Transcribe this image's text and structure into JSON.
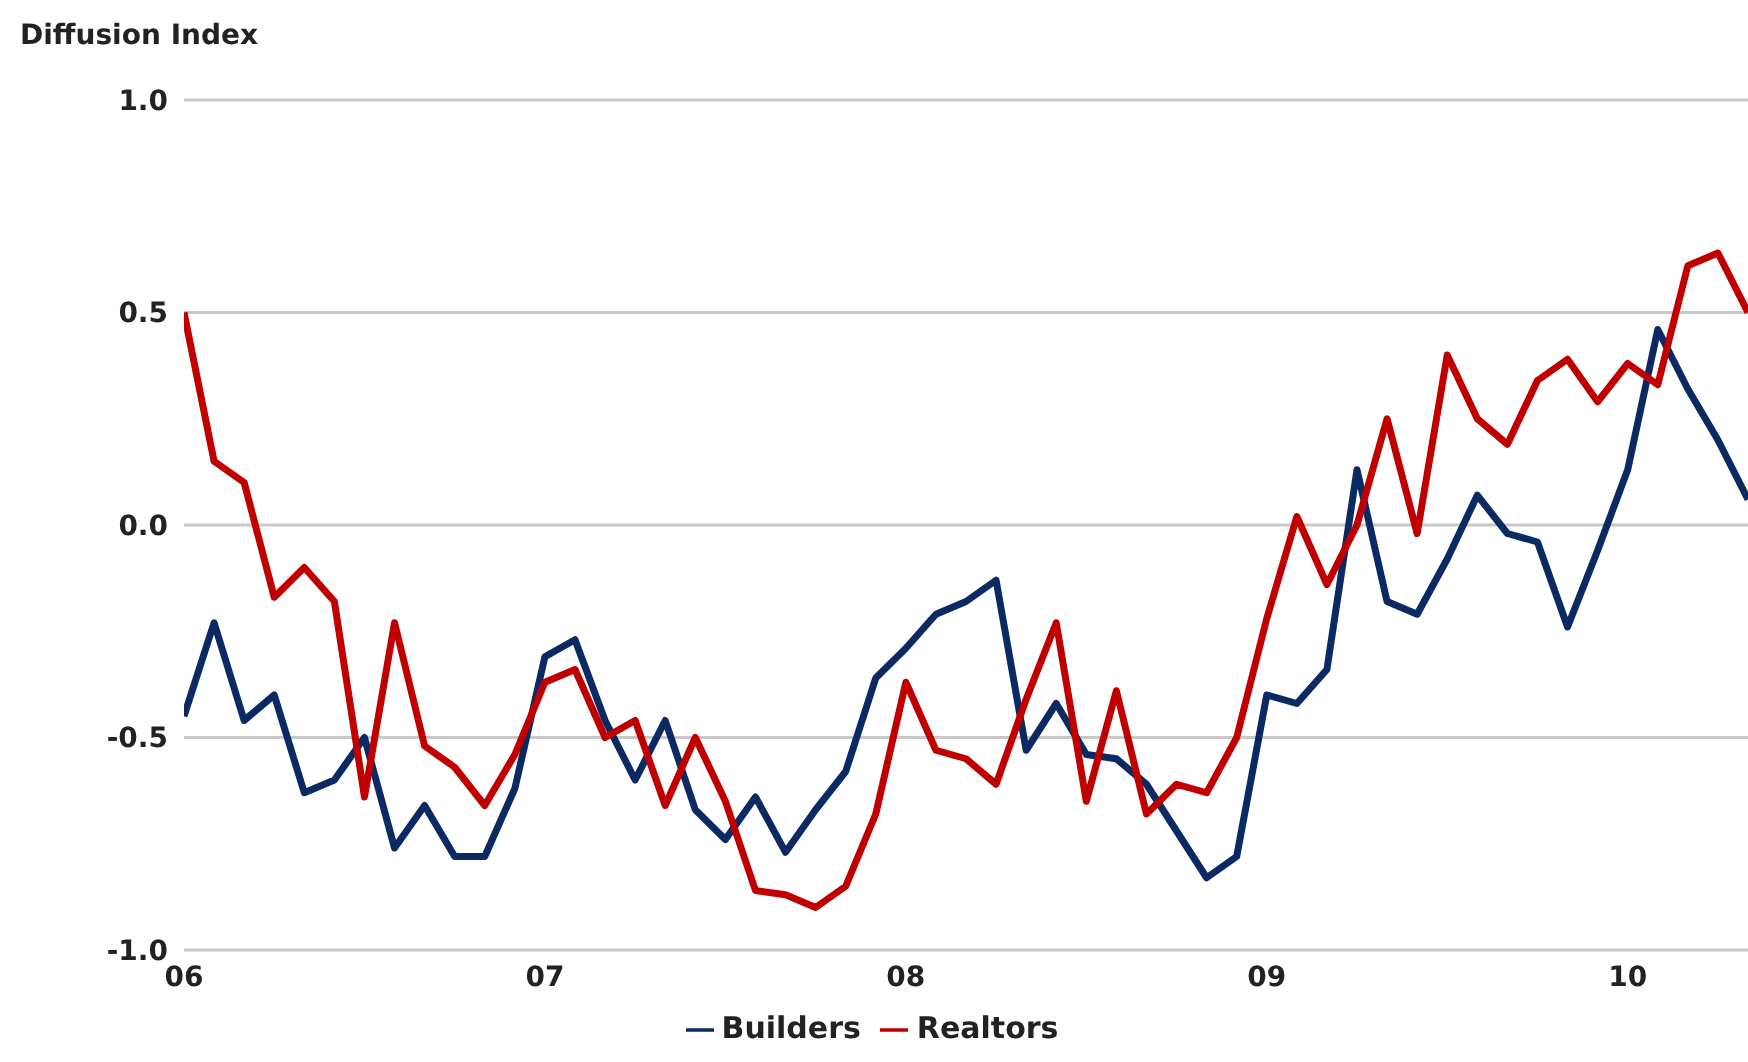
{
  "chart_data": {
    "type": "line",
    "ylabel": "Diffusion Index",
    "x": [
      "2006-01",
      "2006-02",
      "2006-03",
      "2006-04",
      "2006-05",
      "2006-06",
      "2006-07",
      "2006-08",
      "2006-09",
      "2006-10",
      "2006-11",
      "2006-12",
      "2007-01",
      "2007-02",
      "2007-03",
      "2007-04",
      "2007-05",
      "2007-06",
      "2007-07",
      "2007-08",
      "2007-09",
      "2007-10",
      "2007-11",
      "2007-12",
      "2008-01",
      "2008-02",
      "2008-03",
      "2008-04",
      "2008-05",
      "2008-06",
      "2008-07",
      "2008-08",
      "2008-09",
      "2008-10",
      "2008-11",
      "2008-12",
      "2009-01",
      "2009-02",
      "2009-03",
      "2009-04",
      "2009-05",
      "2009-06",
      "2009-07",
      "2009-08",
      "2009-09",
      "2009-10",
      "2009-11",
      "2009-12",
      "2010-01",
      "2010-02",
      "2010-03",
      "2010-04",
      "2010-05"
    ],
    "series": [
      {
        "name": "Builders",
        "color": "#0b2a63",
        "values": [
          -0.45,
          -0.23,
          -0.46,
          -0.4,
          -0.63,
          -0.6,
          -0.5,
          -0.76,
          -0.66,
          -0.78,
          -0.78,
          -0.62,
          -0.31,
          -0.27,
          -0.46,
          -0.6,
          -0.46,
          -0.67,
          -0.74,
          -0.64,
          -0.77,
          -0.67,
          -0.58,
          -0.36,
          -0.29,
          -0.21,
          -0.18,
          -0.13,
          -0.53,
          -0.42,
          -0.54,
          -0.55,
          -0.61,
          -0.72,
          -0.83,
          -0.78,
          -0.4,
          -0.42,
          -0.34,
          0.13,
          -0.18,
          -0.21,
          -0.08,
          0.07,
          -0.02,
          -0.04,
          -0.24,
          -0.06,
          0.13,
          0.46,
          0.32,
          0.2,
          0.06
        ]
      },
      {
        "name": "Realtors",
        "color": "#c00000",
        "values": [
          0.5,
          0.15,
          0.1,
          -0.17,
          -0.1,
          -0.18,
          -0.64,
          -0.23,
          -0.52,
          -0.57,
          -0.66,
          -0.54,
          -0.37,
          -0.34,
          -0.5,
          -0.46,
          -0.66,
          -0.5,
          -0.65,
          -0.86,
          -0.87,
          -0.9,
          -0.85,
          -0.68,
          -0.37,
          -0.53,
          -0.55,
          -0.61,
          -0.41,
          -0.23,
          -0.65,
          -0.39,
          -0.68,
          -0.61,
          -0.63,
          -0.5,
          -0.22,
          0.02,
          -0.14,
          0.0,
          0.25,
          -0.02,
          0.4,
          0.25,
          0.19,
          0.34,
          0.39,
          0.29,
          0.38,
          0.33,
          0.61,
          0.64,
          0.5
        ]
      }
    ],
    "xlim": [
      "2006-01",
      "2010-05"
    ],
    "xticks": [
      {
        "value": "2006-01",
        "label": "06"
      },
      {
        "value": "2007-01",
        "label": "07"
      },
      {
        "value": "2008-01",
        "label": "08"
      },
      {
        "value": "2009-01",
        "label": "09"
      },
      {
        "value": "2010-01",
        "label": "10"
      }
    ],
    "ylim": [
      -1,
      1
    ],
    "yticks": [
      {
        "value": -1,
        "label": "-1.0"
      },
      {
        "value": -0.5,
        "label": "-0.5"
      },
      {
        "value": 0,
        "label": "0.0"
      },
      {
        "value": 0.5,
        "label": "0.5"
      },
      {
        "value": 1,
        "label": "1.0"
      }
    ],
    "grid": "y",
    "legend": "bottom",
    "line_style": "solid"
  }
}
